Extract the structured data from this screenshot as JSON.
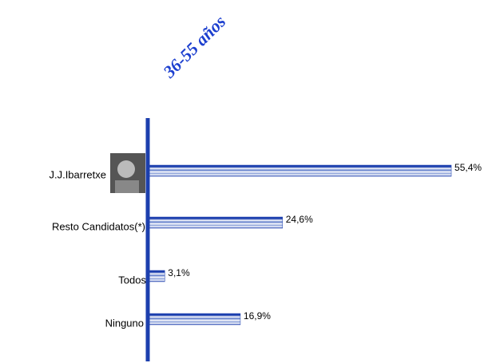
{
  "chart_data": {
    "type": "barh",
    "title": "36-55 años",
    "categories": [
      "J.J.Ibarretxe",
      "Resto  Candidatos(*)",
      "Todos",
      "Ninguno"
    ],
    "values": [
      55.4,
      24.6,
      3.1,
      16.9
    ],
    "value_labels": [
      "55,4%",
      "24,6%",
      "3,1%",
      "16,9%"
    ],
    "color": "#1c3fae"
  }
}
